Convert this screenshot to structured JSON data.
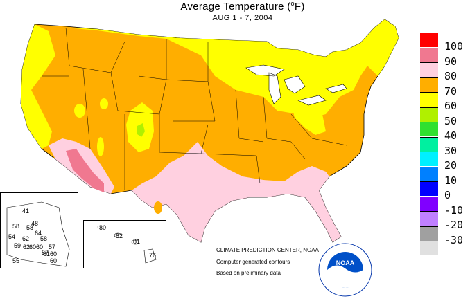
{
  "title_pre": "Average Temperature (",
  "title_unit": "F",
  "title_post": ")",
  "subtitle": "AUG 1 - 7, 2004",
  "legend": [
    {
      "label": "100",
      "color": "#ff0000"
    },
    {
      "label": "90",
      "color": "#f07890"
    },
    {
      "label": "80",
      "color": "#ffd0e0"
    },
    {
      "label": "70",
      "color": "#ffae00"
    },
    {
      "label": "60",
      "color": "#ffff00"
    },
    {
      "label": "50",
      "color": "#b0f000"
    },
    {
      "label": "40",
      "color": "#30e030"
    },
    {
      "label": "30",
      "color": "#00f0a0"
    },
    {
      "label": "20",
      "color": "#00f0ff"
    },
    {
      "label": "10",
      "color": "#0080ff"
    },
    {
      "label": "0",
      "color": "#0000ff"
    },
    {
      "label": "-10",
      "color": "#8000ff"
    },
    {
      "label": "-20",
      "color": "#c080ff"
    },
    {
      "label": "-30",
      "color": "#a0a0a0"
    },
    {
      "label": "",
      "color": "#e0e0e0"
    }
  ],
  "credits": {
    "center": "CLIMATE PREDICTION CENTER, NOAA",
    "line1": "Computer generated contours",
    "line2": "Based on preliminary data"
  },
  "logo_text": "NOAA",
  "logo_ring": "NATIONAL OCEANIC AND ATMOSPHERIC ADMINISTRATION · U.S. DEPARTMENT OF COMMERCE",
  "alaska_values": [
    "41",
    "48",
    "58",
    "58",
    "64",
    "54",
    "62",
    "58",
    "59",
    "57",
    "62",
    "60",
    "60",
    "57",
    "61",
    "60",
    "55",
    "60"
  ],
  "hawaii_values": [
    "80",
    "82",
    "81",
    "76"
  ]
}
